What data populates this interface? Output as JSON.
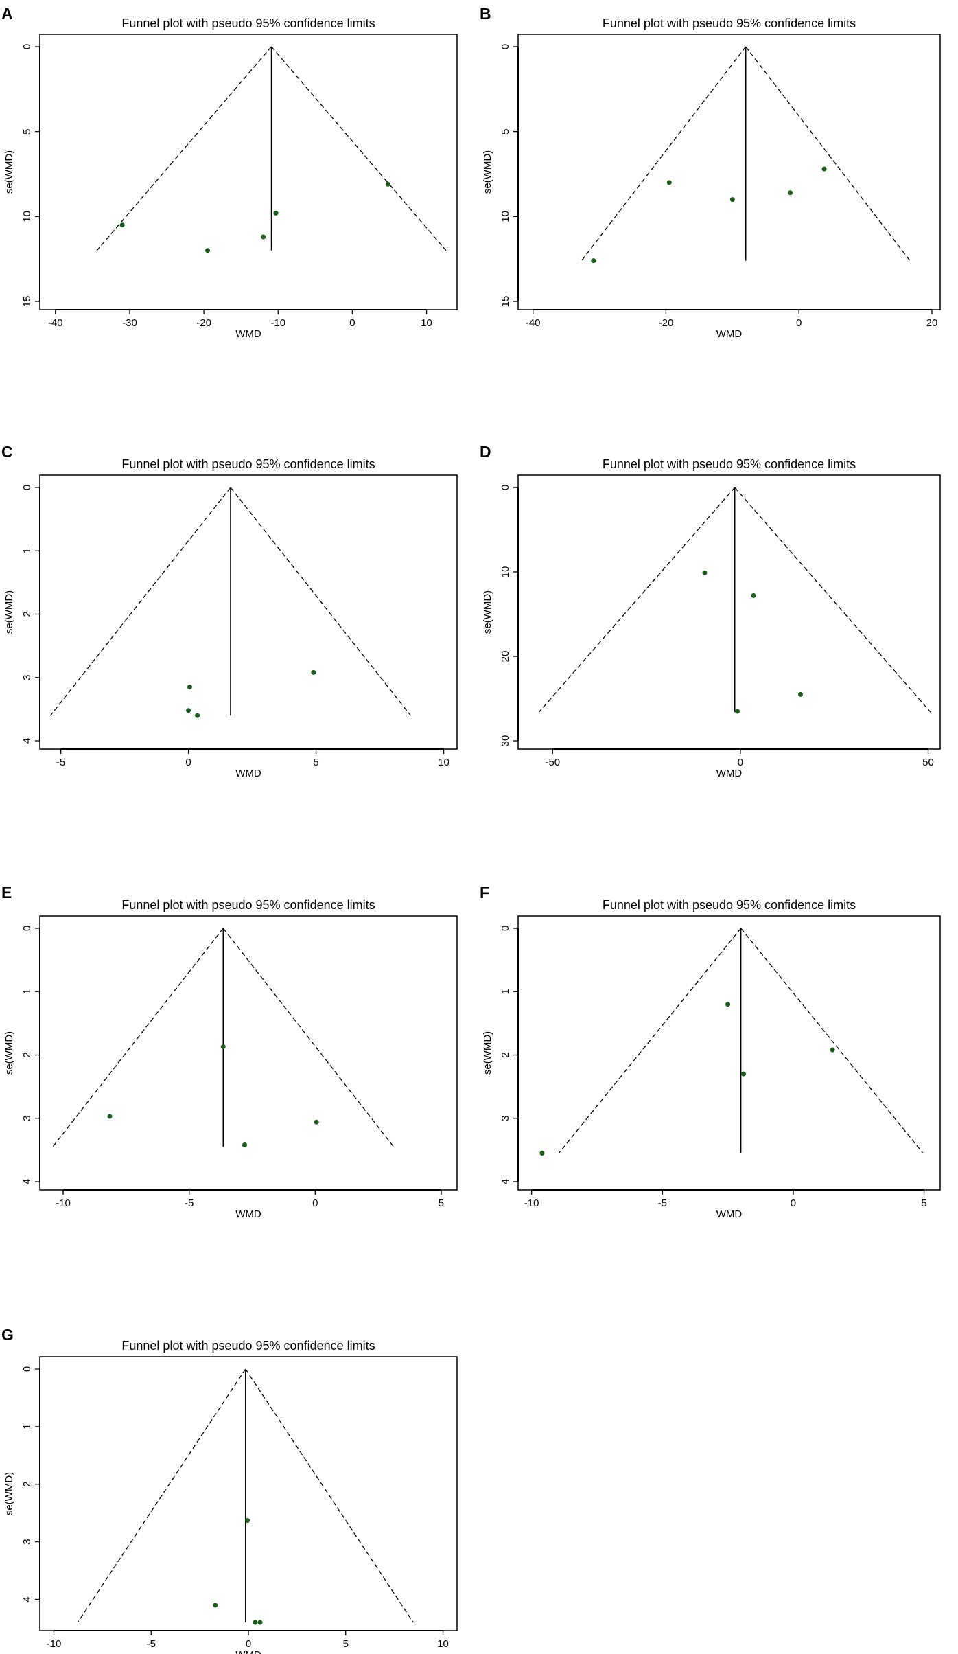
{
  "chart_data": [
    {
      "panel": "A",
      "type": "scatter",
      "title": "Funnel plot with pseudo 95% confidence limits",
      "xlabel": "WMD",
      "ylabel": "se(WMD)",
      "xlim": [
        -41,
        13
      ],
      "ylim": [
        0,
        15
      ],
      "y_inverted": true,
      "xticks": [
        -40,
        -30,
        -20,
        -10,
        0,
        10
      ],
      "yticks": [
        0,
        5,
        10,
        15
      ],
      "pooled_estimate": -10.9,
      "max_se": 12.0,
      "points": [
        {
          "x": -31.0,
          "y": 10.5
        },
        {
          "x": -19.5,
          "y": 12.0
        },
        {
          "x": -12.0,
          "y": 11.2
        },
        {
          "x": -10.3,
          "y": 9.8
        },
        {
          "x": 4.8,
          "y": 8.1
        }
      ]
    },
    {
      "panel": "B",
      "type": "scatter",
      "title": "Funnel plot with pseudo 95% confidence limits",
      "xlabel": "WMD",
      "ylabel": "se(WMD)",
      "xlim": [
        -41,
        20
      ],
      "ylim": [
        0,
        15
      ],
      "y_inverted": true,
      "xticks": [
        -40,
        -20,
        0,
        20
      ],
      "yticks": [
        0,
        5,
        10,
        15
      ],
      "pooled_estimate": -8.0,
      "max_se": 12.6,
      "points": [
        {
          "x": -30.9,
          "y": 12.6
        },
        {
          "x": -19.5,
          "y": 8.0
        },
        {
          "x": -10.0,
          "y": 9.0
        },
        {
          "x": -1.3,
          "y": 8.6
        },
        {
          "x": 3.8,
          "y": 7.2
        }
      ]
    },
    {
      "panel": "C",
      "type": "scatter",
      "title": "Funnel plot with pseudo 95% confidence limits",
      "xlabel": "WMD",
      "ylabel": "se(WMD)",
      "xlim": [
        -5.5,
        10.2
      ],
      "ylim": [
        0,
        4
      ],
      "y_inverted": true,
      "xticks": [
        -5,
        0,
        5,
        10
      ],
      "yticks": [
        0,
        1,
        2,
        3,
        4
      ],
      "pooled_estimate": 1.65,
      "max_se": 3.6,
      "points": [
        {
          "x": 0.05,
          "y": 3.15
        },
        {
          "x": 0.0,
          "y": 3.52
        },
        {
          "x": 0.35,
          "y": 3.6
        },
        {
          "x": 4.9,
          "y": 2.92
        }
      ]
    },
    {
      "panel": "D",
      "type": "scatter",
      "title": "Funnel plot with pseudo 95% confidence limits",
      "xlabel": "WMD",
      "ylabel": "se(WMD)",
      "xlim": [
        -57,
        51
      ],
      "ylim": [
        0,
        30
      ],
      "y_inverted": true,
      "xticks": [
        -50,
        0,
        50
      ],
      "yticks": [
        0,
        10,
        20,
        30
      ],
      "pooled_estimate": -1.5,
      "max_se": 26.6,
      "points": [
        {
          "x": -9.5,
          "y": 10.1
        },
        {
          "x": 3.5,
          "y": 12.8
        },
        {
          "x": -0.8,
          "y": 26.5
        },
        {
          "x": 16.0,
          "y": 24.5
        }
      ]
    },
    {
      "panel": "E",
      "type": "scatter",
      "title": "Funnel plot with pseudo 95% confidence limits",
      "xlabel": "WMD",
      "ylabel": "se(WMD)",
      "xlim": [
        -10.6,
        5.3
      ],
      "ylim": [
        0,
        4
      ],
      "y_inverted": true,
      "xticks": [
        -10,
        -5,
        0,
        5
      ],
      "yticks": [
        0,
        1,
        2,
        3,
        4
      ],
      "pooled_estimate": -3.65,
      "max_se": 3.45,
      "points": [
        {
          "x": -8.15,
          "y": 2.97
        },
        {
          "x": -3.65,
          "y": 1.87
        },
        {
          "x": -2.8,
          "y": 3.42
        },
        {
          "x": 0.05,
          "y": 3.06
        }
      ]
    },
    {
      "panel": "F",
      "type": "scatter",
      "title": "Funnel plot with pseudo 95% confidence limits",
      "xlabel": "WMD",
      "ylabel": "se(WMD)",
      "xlim": [
        -10.2,
        5.3
      ],
      "ylim": [
        0,
        4
      ],
      "y_inverted": true,
      "xticks": [
        -10,
        -5,
        0,
        5
      ],
      "yticks": [
        0,
        1,
        2,
        3,
        4
      ],
      "pooled_estimate": -2.0,
      "max_se": 3.55,
      "points": [
        {
          "x": -9.6,
          "y": 3.55
        },
        {
          "x": -2.5,
          "y": 1.2
        },
        {
          "x": -1.9,
          "y": 2.3
        },
        {
          "x": 1.5,
          "y": 1.92
        }
      ]
    },
    {
      "panel": "G",
      "type": "scatter",
      "title": "Funnel plot with pseudo 95% confidence limits",
      "xlabel": "WMD",
      "ylabel": "se(WMD)",
      "xlim": [
        -10.3,
        10.3
      ],
      "ylim": [
        0,
        4.4
      ],
      "y_inverted": true,
      "xticks": [
        -10,
        -5,
        0,
        5,
        10
      ],
      "yticks": [
        0,
        1,
        2,
        3,
        4
      ],
      "pooled_estimate": -0.15,
      "max_se": 4.4,
      "points": [
        {
          "x": -1.7,
          "y": 4.1
        },
        {
          "x": -0.05,
          "y": 2.63
        },
        {
          "x": 0.35,
          "y": 4.4
        },
        {
          "x": 0.6,
          "y": 4.4
        }
      ]
    }
  ],
  "style": {
    "point_color": "#1a5c1a",
    "line_color": "#000000",
    "background": "#ffffff"
  }
}
